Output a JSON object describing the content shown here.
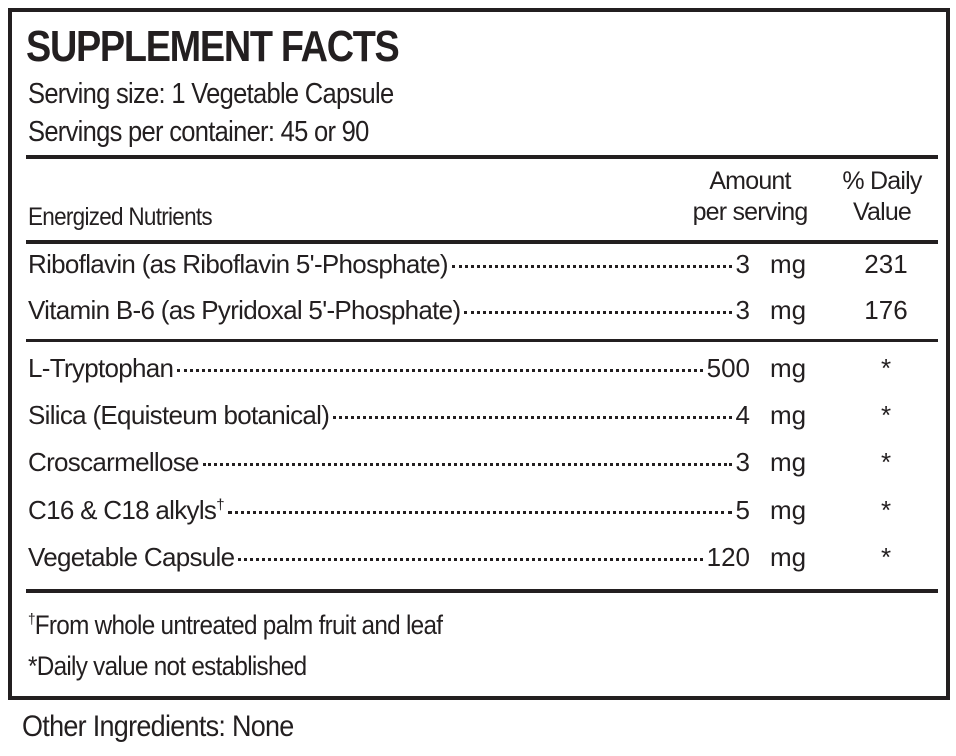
{
  "title": "SUPPLEMENT FACTS",
  "serving_size": "Serving size: 1 Vegetable Capsule",
  "servings_per_container": "Servings per container: 45 or 90",
  "headers": {
    "section": "Energized Nutrients",
    "amount_line1": "Amount",
    "amount_line2": "per serving",
    "dv_line1": "% Daily",
    "dv_line2": "Value"
  },
  "group1": [
    {
      "name": "Riboflavin (as Riboflavin 5'-Phosphate)",
      "amount": "3",
      "unit": "mg",
      "dv": "231"
    },
    {
      "name": "Vitamin B-6 (as Pyridoxal 5'-Phosphate)",
      "amount": "3",
      "unit": "mg",
      "dv": "176"
    }
  ],
  "group2": [
    {
      "name": "L-Tryptophan",
      "amount": "500",
      "unit": "mg",
      "dv": "*"
    },
    {
      "name": "Silica (Equisteum botanical)",
      "amount": "4",
      "unit": "mg",
      "dv": "*"
    },
    {
      "name": "Croscarmellose",
      "amount": "3",
      "unit": "mg",
      "dv": "*"
    },
    {
      "name": "C16 & C18 alkyls",
      "mark": "†",
      "amount": "5",
      "unit": "mg",
      "dv": "*"
    },
    {
      "name": "Vegetable Capsule",
      "amount": "120",
      "unit": "mg",
      "dv": "*"
    }
  ],
  "footnotes": {
    "dagger_mark": "†",
    "dagger": "From whole untreated palm fruit and leaf",
    "star": "*Daily value not established"
  },
  "other_ingredients": "Other Ingredients: None"
}
